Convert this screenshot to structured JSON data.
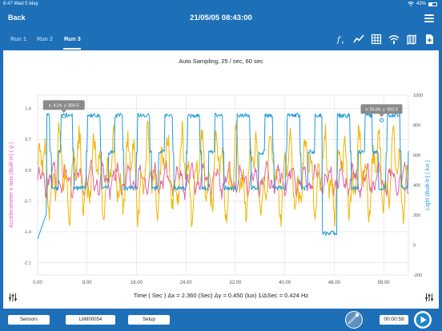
{
  "status_bar": {
    "time": "8:47",
    "date": "Wed 5 May",
    "battery": "43%",
    "battery_level": 0.43
  },
  "nav": {
    "back_label": "Back",
    "title": "21/05/05 08:43:00"
  },
  "tabs": [
    {
      "label": "Run 1",
      "active": false
    },
    {
      "label": "Run 2",
      "active": false
    },
    {
      "label": "Run 3",
      "active": true
    }
  ],
  "toolbar_icons": [
    "curve-fit-icon",
    "line-chart-icon",
    "grid-icon",
    "wifi-share-icon",
    "map-icon",
    "export-file-icon"
  ],
  "chart": {
    "title": "Auto Sampling,  25 / sec,  60 sec",
    "readout": "Time ( Sec ) Δx = 2.360 (Sec)  Δy = 0.450 (lux) 1/ΔSec = 0.424 Hz"
  },
  "chart_data": {
    "type": "line",
    "xlabel": "",
    "xlim": [
      0,
      60
    ],
    "x_ticks": [
      "0.00",
      "8.00",
      "16.00",
      "24.00",
      "32.00",
      "40.00",
      "48.00",
      "56.00"
    ],
    "y_left": {
      "label": "Accelerometer x axis (Built-in) ( g )",
      "range": [
        -2.38,
        1.7
      ],
      "ticks": [
        "1.4",
        "0.7",
        "0.0",
        "-0.7",
        "-1.4",
        "-2.1"
      ],
      "color": "#e060b0"
    },
    "y_right": {
      "label": "Light (Built-in) ( lux )",
      "range": [
        -200,
        1000
      ],
      "ticks": [
        "1000",
        "800",
        "600",
        "400",
        "200",
        "0",
        "-200"
      ],
      "color": "#1e9ad6"
    },
    "grid": true,
    "series": [
      {
        "color": "#1e9ad6",
        "axis": "right"
      },
      {
        "color": "#f0b400",
        "axis": "left"
      },
      {
        "color": "#e060b0",
        "axis": "left"
      }
    ],
    "annotations": [
      {
        "text": "x: 4.24,  y: 859.5",
        "x": 4.24,
        "y": 859.5
      },
      {
        "text": "x: 55.66,  y: 832.5",
        "x": 55.66,
        "y": 832.5
      }
    ]
  },
  "bottom": {
    "sensors_label": "Sensors",
    "device_label": "LMII00054",
    "setup_label": "Setup",
    "timer": "00:00:59"
  },
  "colors": {
    "accent": "#1d6fb8",
    "light": "#1e9ad6",
    "accel_x": "#f0b400",
    "accel_pink": "#e060b0"
  }
}
